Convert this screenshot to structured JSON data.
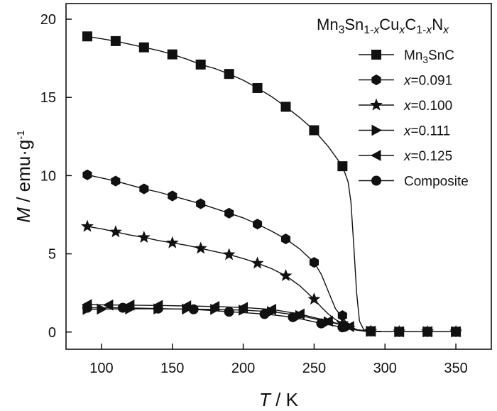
{
  "chart_data": {
    "type": "line",
    "title": "",
    "xlabel": {
      "symbol": "T",
      "unit": " / K"
    },
    "ylabel": {
      "symbol": "M",
      "unit": " / emu·g",
      "sup": "-1"
    },
    "xlim": [
      75,
      375
    ],
    "ylim": [
      -1.1,
      21
    ],
    "xticks": [
      "100",
      "150",
      "200",
      "250",
      "300",
      "350"
    ],
    "yticks": [
      "0",
      "5",
      "10",
      "15",
      "20"
    ],
    "grid": false,
    "legend_position": "top-right",
    "legend_title": {
      "parts": [
        {
          "t": "Mn"
        },
        {
          "t": "3",
          "sub": true
        },
        {
          "t": "Sn"
        },
        {
          "t": "1-",
          "sub": true
        },
        {
          "t": "x",
          "sub": true,
          "italic": true
        },
        {
          "t": "Cu"
        },
        {
          "t": "x",
          "sub": true,
          "italic": true
        },
        {
          "t": "C"
        },
        {
          "t": "1-",
          "sub": true
        },
        {
          "t": "x",
          "sub": true,
          "italic": true
        },
        {
          "t": "N"
        },
        {
          "t": "x",
          "sub": true,
          "italic": true
        }
      ]
    },
    "series": [
      {
        "name": "Mn3SnC",
        "label_parts": [
          {
            "t": "Mn"
          },
          {
            "t": "3",
            "sub": true
          },
          {
            "t": "SnC"
          }
        ],
        "marker": "square",
        "x": [
          90,
          110,
          130,
          150,
          170,
          190,
          210,
          230,
          250,
          270,
          290,
          310,
          330,
          350
        ],
        "y": [
          18.9,
          18.6,
          18.2,
          17.75,
          17.1,
          16.5,
          15.6,
          14.4,
          12.9,
          10.6,
          0.05,
          0.02,
          0.02,
          0.02
        ],
        "curve_x": [
          90,
          100,
          110,
          120,
          130,
          140,
          150,
          160,
          170,
          180,
          190,
          200,
          210,
          220,
          230,
          240,
          250,
          260,
          270,
          274,
          276,
          278,
          280,
          282,
          285,
          290,
          300,
          310,
          320,
          330,
          340,
          350
        ],
        "curve_y": [
          18.9,
          18.75,
          18.6,
          18.4,
          18.2,
          18.0,
          17.75,
          17.45,
          17.1,
          16.85,
          16.5,
          16.1,
          15.6,
          15.05,
          14.4,
          13.7,
          12.9,
          11.85,
          10.6,
          9.6,
          8.3,
          5.5,
          2.5,
          0.7,
          0.15,
          0.05,
          0.02,
          0.02,
          0.02,
          0.02,
          0.02,
          0.02
        ]
      },
      {
        "name": "x=0.091",
        "label_parts": [
          {
            "t": "x",
            "italic": true
          },
          {
            "t": "=0.091"
          }
        ],
        "marker": "circle",
        "x": [
          90,
          110,
          130,
          150,
          170,
          190,
          210,
          230,
          250,
          270,
          290,
          310,
          330,
          350
        ],
        "y": [
          10.05,
          9.65,
          9.15,
          8.7,
          8.2,
          7.6,
          6.9,
          5.95,
          4.45,
          1.05,
          0.05,
          0.02,
          0.02,
          0.02
        ],
        "curve_x": [
          90,
          100,
          110,
          120,
          130,
          140,
          150,
          160,
          170,
          180,
          190,
          200,
          210,
          220,
          230,
          240,
          250,
          255,
          260,
          265,
          270,
          275,
          280,
          285,
          290,
          300,
          310,
          320,
          330,
          340,
          350
        ],
        "curve_y": [
          10.05,
          9.85,
          9.65,
          9.4,
          9.15,
          8.95,
          8.7,
          8.45,
          8.2,
          7.9,
          7.6,
          7.3,
          6.9,
          6.45,
          5.95,
          5.3,
          4.45,
          3.7,
          2.6,
          1.5,
          0.9,
          0.4,
          0.15,
          0.06,
          0.05,
          0.02,
          0.02,
          0.02,
          0.02,
          0.02,
          0.02
        ]
      },
      {
        "name": "x=0.100",
        "label_parts": [
          {
            "t": "x",
            "italic": true
          },
          {
            "t": "=0.100"
          }
        ],
        "marker": "star",
        "x": [
          90,
          110,
          130,
          150,
          170,
          190,
          210,
          230,
          250,
          270,
          290,
          310,
          330,
          350
        ],
        "y": [
          6.75,
          6.4,
          6.05,
          5.7,
          5.35,
          4.95,
          4.4,
          3.6,
          2.1,
          0.55,
          0.05,
          0.02,
          0.02,
          0.02
        ],
        "curve_x": [
          90,
          100,
          110,
          120,
          130,
          140,
          150,
          160,
          170,
          180,
          190,
          200,
          210,
          220,
          230,
          240,
          250,
          255,
          260,
          265,
          270,
          275,
          280,
          285,
          290,
          300,
          310,
          320,
          330,
          340,
          350
        ],
        "curve_y": [
          6.75,
          6.6,
          6.4,
          6.2,
          6.05,
          5.85,
          5.7,
          5.55,
          5.35,
          5.15,
          4.95,
          4.7,
          4.4,
          4.05,
          3.6,
          2.95,
          2.1,
          1.6,
          1.15,
          0.8,
          0.55,
          0.3,
          0.12,
          0.06,
          0.05,
          0.02,
          0.02,
          0.02,
          0.02,
          0.02,
          0.02
        ]
      },
      {
        "name": "x=0.111",
        "label_parts": [
          {
            "t": "x",
            "italic": true
          },
          {
            "t": "=0.111"
          }
        ],
        "marker": "triangle-right",
        "x": [
          90,
          100,
          120,
          140,
          160,
          180,
          200,
          220,
          240,
          260,
          275,
          290,
          310,
          330,
          350
        ],
        "y": [
          1.45,
          1.47,
          1.48,
          1.48,
          1.47,
          1.45,
          1.4,
          1.3,
          1.05,
          0.65,
          0.35,
          0.05,
          0.02,
          0.02,
          0.02
        ],
        "curve_x": [
          90,
          100,
          120,
          140,
          160,
          180,
          200,
          220,
          240,
          260,
          270,
          280,
          290,
          300,
          310,
          320,
          330,
          340,
          350
        ],
        "curve_y": [
          1.45,
          1.47,
          1.48,
          1.48,
          1.47,
          1.45,
          1.4,
          1.3,
          1.05,
          0.65,
          0.45,
          0.15,
          0.05,
          0.02,
          0.02,
          0.02,
          0.02,
          0.02,
          0.02
        ]
      },
      {
        "name": "x=0.125",
        "label_parts": [
          {
            "t": "x",
            "italic": true
          },
          {
            "t": "=0.125"
          }
        ],
        "marker": "triangle-left",
        "x": [
          90,
          105,
          120,
          140,
          160,
          180,
          200,
          220,
          240,
          260,
          275,
          290,
          310,
          330,
          350
        ],
        "y": [
          1.75,
          1.73,
          1.72,
          1.7,
          1.67,
          1.63,
          1.57,
          1.45,
          1.15,
          0.7,
          0.35,
          0.05,
          0.02,
          0.02,
          0.02
        ],
        "curve_x": [
          90,
          105,
          120,
          140,
          160,
          180,
          200,
          220,
          240,
          260,
          270,
          280,
          290,
          300,
          310,
          320,
          330,
          340,
          350
        ],
        "curve_y": [
          1.75,
          1.73,
          1.72,
          1.7,
          1.67,
          1.63,
          1.57,
          1.45,
          1.15,
          0.7,
          0.45,
          0.15,
          0.05,
          0.02,
          0.02,
          0.02,
          0.02,
          0.02,
          0.02
        ]
      },
      {
        "name": "Composite",
        "label_parts": [
          {
            "t": "Composite"
          }
        ],
        "marker": "filled-circle",
        "x": [
          90,
          115,
          140,
          165,
          190,
          215,
          235,
          255,
          270,
          290,
          310,
          330,
          350
        ],
        "y": [
          1.55,
          1.55,
          1.5,
          1.45,
          1.3,
          1.15,
          0.95,
          0.55,
          0.3,
          0.05,
          0.02,
          0.02,
          0.02
        ],
        "curve_x": [
          90,
          115,
          140,
          165,
          190,
          215,
          235,
          255,
          270,
          280,
          290,
          300,
          310,
          320,
          330,
          340,
          350
        ],
        "curve_y": [
          1.55,
          1.55,
          1.5,
          1.45,
          1.3,
          1.15,
          0.95,
          0.55,
          0.3,
          0.12,
          0.05,
          0.02,
          0.02,
          0.02,
          0.02,
          0.02,
          0.02
        ]
      }
    ]
  }
}
